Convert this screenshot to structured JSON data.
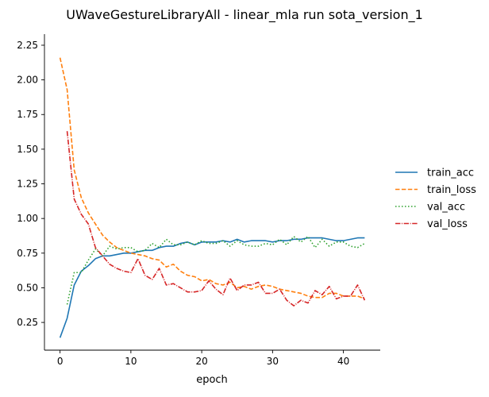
{
  "chart_data": {
    "type": "line",
    "title": "UWaveGestureLibraryAll - linear_mla run sota_version_1",
    "xlabel": "epoch",
    "ylabel": "",
    "xlim": [
      -2.2,
      45.2
    ],
    "ylim": [
      0.05,
      2.33
    ],
    "xticks": [
      0,
      10,
      20,
      30,
      40
    ],
    "yticks": [
      0.25,
      0.5,
      0.75,
      1.0,
      1.25,
      1.5,
      1.75,
      2.0,
      2.25
    ],
    "legend_position": "right",
    "series": [
      {
        "name": "train_acc",
        "color": "#1f77b4",
        "dash": "solid",
        "x": [
          0,
          1,
          2,
          3,
          4,
          5,
          6,
          7,
          8,
          9,
          10,
          11,
          12,
          13,
          14,
          15,
          16,
          17,
          18,
          19,
          20,
          21,
          22,
          23,
          24,
          25,
          26,
          27,
          28,
          29,
          30,
          31,
          32,
          33,
          34,
          35,
          36,
          37,
          38,
          39,
          40,
          41,
          42,
          43
        ],
        "y": [
          0.14,
          0.28,
          0.52,
          0.62,
          0.66,
          0.71,
          0.73,
          0.73,
          0.74,
          0.75,
          0.75,
          0.76,
          0.77,
          0.77,
          0.79,
          0.8,
          0.8,
          0.82,
          0.83,
          0.81,
          0.83,
          0.83,
          0.83,
          0.84,
          0.83,
          0.85,
          0.83,
          0.84,
          0.84,
          0.84,
          0.83,
          0.84,
          0.84,
          0.85,
          0.85,
          0.86,
          0.86,
          0.86,
          0.85,
          0.84,
          0.84,
          0.85,
          0.86,
          0.86
        ]
      },
      {
        "name": "train_loss",
        "color": "#ff7f0e",
        "dash": "dashed",
        "x": [
          0,
          1,
          2,
          3,
          4,
          5,
          6,
          7,
          8,
          9,
          10,
          11,
          12,
          13,
          14,
          15,
          16,
          17,
          18,
          19,
          20,
          21,
          22,
          23,
          24,
          25,
          26,
          27,
          28,
          29,
          30,
          31,
          32,
          33,
          34,
          35,
          36,
          37,
          38,
          39,
          40,
          41,
          42,
          43
        ],
        "y": [
          2.16,
          1.93,
          1.35,
          1.15,
          1.04,
          0.96,
          0.88,
          0.83,
          0.79,
          0.77,
          0.75,
          0.74,
          0.73,
          0.71,
          0.7,
          0.65,
          0.67,
          0.62,
          0.59,
          0.58,
          0.55,
          0.56,
          0.53,
          0.52,
          0.54,
          0.5,
          0.51,
          0.49,
          0.51,
          0.52,
          0.51,
          0.49,
          0.48,
          0.47,
          0.46,
          0.44,
          0.43,
          0.43,
          0.46,
          0.46,
          0.44,
          0.44,
          0.44,
          0.42
        ]
      },
      {
        "name": "val_acc",
        "color": "#2ca02c",
        "dash": "dotted",
        "x": [
          1,
          2,
          3,
          4,
          5,
          6,
          7,
          8,
          9,
          10,
          11,
          12,
          13,
          14,
          15,
          16,
          17,
          18,
          19,
          20,
          21,
          22,
          23,
          24,
          25,
          26,
          27,
          28,
          29,
          30,
          31,
          32,
          33,
          34,
          35,
          36,
          37,
          38,
          39,
          40,
          41,
          42,
          43
        ],
        "y": [
          0.38,
          0.61,
          0.61,
          0.7,
          0.78,
          0.73,
          0.8,
          0.78,
          0.79,
          0.79,
          0.76,
          0.77,
          0.82,
          0.79,
          0.85,
          0.81,
          0.81,
          0.83,
          0.81,
          0.84,
          0.82,
          0.82,
          0.84,
          0.8,
          0.84,
          0.81,
          0.8,
          0.8,
          0.82,
          0.81,
          0.85,
          0.81,
          0.87,
          0.83,
          0.87,
          0.79,
          0.85,
          0.8,
          0.83,
          0.83,
          0.8,
          0.79,
          0.82
        ]
      },
      {
        "name": "val_loss",
        "color": "#d62728",
        "dash": "dashdot",
        "x": [
          1,
          2,
          3,
          4,
          5,
          6,
          7,
          8,
          9,
          10,
          11,
          12,
          13,
          14,
          15,
          16,
          17,
          18,
          19,
          20,
          21,
          22,
          23,
          24,
          25,
          26,
          27,
          28,
          29,
          30,
          31,
          32,
          33,
          34,
          35,
          36,
          37,
          38,
          39,
          40,
          41,
          42,
          43
        ],
        "y": [
          1.63,
          1.14,
          1.03,
          0.96,
          0.79,
          0.73,
          0.67,
          0.64,
          0.62,
          0.61,
          0.71,
          0.59,
          0.56,
          0.64,
          0.52,
          0.53,
          0.5,
          0.47,
          0.47,
          0.48,
          0.55,
          0.49,
          0.45,
          0.57,
          0.48,
          0.52,
          0.52,
          0.54,
          0.46,
          0.46,
          0.49,
          0.41,
          0.37,
          0.41,
          0.39,
          0.48,
          0.45,
          0.51,
          0.42,
          0.44,
          0.44,
          0.52,
          0.41
        ]
      }
    ]
  }
}
